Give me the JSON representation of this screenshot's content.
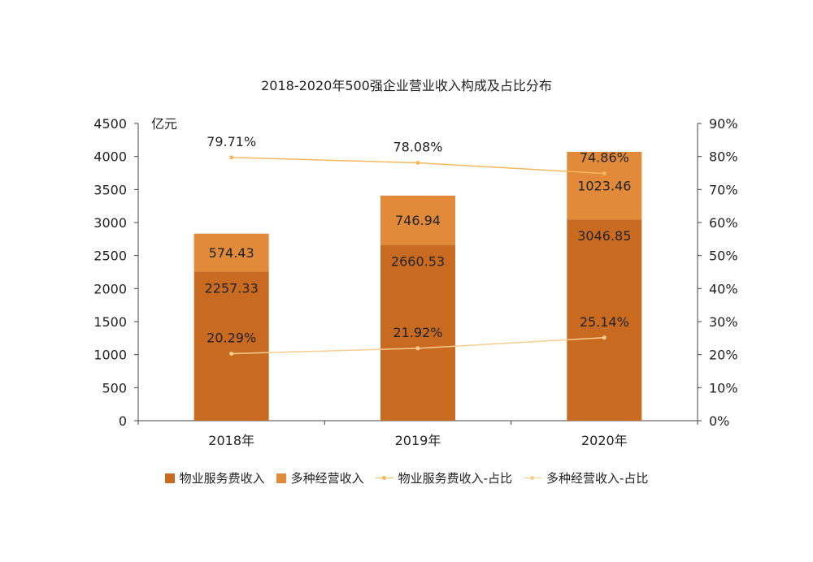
{
  "chart_data": {
    "type": "bar",
    "title": "2018-2020年500强企业营业收入构成及占比分布",
    "categories": [
      "2018年",
      "2019年",
      "2020年"
    ],
    "y_left_unit": "亿元",
    "y_left_lim": [
      0,
      4500
    ],
    "y_left_ticks": [
      "0",
      "500",
      "1000",
      "1500",
      "2000",
      "2500",
      "3000",
      "3500",
      "4000",
      "4500"
    ],
    "y_right_lim": [
      0,
      90
    ],
    "y_right_ticks": [
      "0%",
      "10%",
      "20%",
      "30%",
      "40%",
      "50%",
      "60%",
      "70%",
      "80%",
      "90%"
    ],
    "stacked": true,
    "series": [
      {
        "name": "物业服务费收入",
        "kind": "bar",
        "values": [
          2257.33,
          2660.53,
          3046.85
        ],
        "labels": [
          "2257.33",
          "2660.53",
          "3046.85"
        ],
        "color": "#C96A21"
      },
      {
        "name": "多种经营收入",
        "kind": "bar",
        "values": [
          574.43,
          746.94,
          1023.46
        ],
        "labels": [
          "574.43",
          "746.94",
          "1023.46"
        ],
        "color": "#E08A3A"
      },
      {
        "name": "物业服务费收入-占比",
        "kind": "line",
        "axis": "right",
        "values": [
          79.71,
          78.08,
          74.86
        ],
        "labels": [
          "79.71%",
          "78.08%",
          "74.86%"
        ],
        "color": "#F5B85C"
      },
      {
        "name": "多种经营收入-占比",
        "kind": "line",
        "axis": "right",
        "values": [
          20.29,
          21.92,
          25.14
        ],
        "labels": [
          "20.29%",
          "21.92%",
          "25.14%"
        ],
        "color": "#F8CD8E"
      }
    ],
    "grid": false,
    "legend_position": "bottom"
  }
}
